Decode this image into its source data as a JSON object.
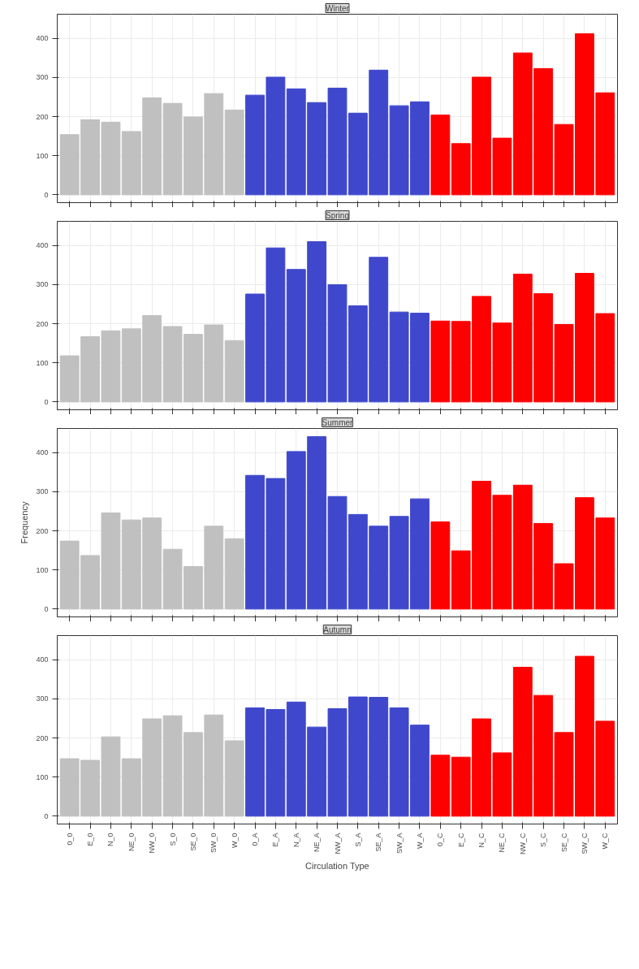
{
  "chart_data": [
    {
      "type": "bar",
      "title": "Winter",
      "categories": [
        null,
        null,
        null,
        null,
        null,
        null,
        null,
        null,
        null,
        null,
        null,
        null,
        null,
        null,
        null,
        null,
        null,
        null,
        null,
        null,
        null,
        null,
        null,
        null,
        null,
        null,
        null
      ],
      "values": [
        154,
        192,
        186,
        162,
        248,
        234,
        199,
        259,
        217,
        255,
        301,
        271,
        236,
        273,
        209,
        319,
        228,
        238,
        204,
        131,
        301,
        145,
        363,
        323,
        180,
        412,
        261
      ],
      "colors": [
        "#c0c0c0",
        "#c0c0c0",
        "#c0c0c0",
        "#c0c0c0",
        "#c0c0c0",
        "#c0c0c0",
        "#c0c0c0",
        "#c0c0c0",
        "#c0c0c0",
        "#3f48cc",
        "#3f48cc",
        "#3f48cc",
        "#3f48cc",
        "#3f48cc",
        "#3f48cc",
        "#3f48cc",
        "#3f48cc",
        "#3f48cc",
        "#ff0000",
        "#ff0000",
        "#ff0000",
        "#ff0000",
        "#ff0000",
        "#ff0000",
        "#ff0000",
        "#ff0000",
        "#ff0000"
      ],
      "ylim": [
        -20,
        462
      ],
      "yticks": [
        0,
        100,
        200,
        300,
        400
      ],
      "grid": true
    },
    {
      "type": "bar",
      "title": "Spring",
      "categories": [
        null,
        null,
        null,
        null,
        null,
        null,
        null,
        null,
        null,
        null,
        null,
        null,
        null,
        null,
        null,
        null,
        null,
        null,
        null,
        null,
        null,
        null,
        null,
        null,
        null,
        null,
        null
      ],
      "values": [
        118,
        167,
        182,
        187,
        221,
        193,
        173,
        197,
        157,
        276,
        394,
        339,
        410,
        300,
        246,
        370,
        230,
        227,
        207,
        206,
        270,
        202,
        327,
        277,
        198,
        329,
        226
      ],
      "colors": [
        "#c0c0c0",
        "#c0c0c0",
        "#c0c0c0",
        "#c0c0c0",
        "#c0c0c0",
        "#c0c0c0",
        "#c0c0c0",
        "#c0c0c0",
        "#c0c0c0",
        "#3f48cc",
        "#3f48cc",
        "#3f48cc",
        "#3f48cc",
        "#3f48cc",
        "#3f48cc",
        "#3f48cc",
        "#3f48cc",
        "#3f48cc",
        "#ff0000",
        "#ff0000",
        "#ff0000",
        "#ff0000",
        "#ff0000",
        "#ff0000",
        "#ff0000",
        "#ff0000",
        "#ff0000"
      ],
      "ylim": [
        -20,
        462
      ],
      "yticks": [
        0,
        100,
        200,
        300,
        400
      ],
      "grid": true
    },
    {
      "type": "bar",
      "title": "Summer",
      "ylabel": "Frequency",
      "categories": [
        null,
        null,
        null,
        null,
        null,
        null,
        null,
        null,
        null,
        null,
        null,
        null,
        null,
        null,
        null,
        null,
        null,
        null,
        null,
        null,
        null,
        null,
        null,
        null,
        null,
        null,
        null
      ],
      "values": [
        174,
        137,
        246,
        228,
        233,
        153,
        109,
        212,
        180,
        342,
        334,
        403,
        441,
        288,
        242,
        212,
        237,
        282,
        223,
        149,
        327,
        291,
        317,
        219,
        116,
        285,
        233
      ],
      "colors": [
        "#c0c0c0",
        "#c0c0c0",
        "#c0c0c0",
        "#c0c0c0",
        "#c0c0c0",
        "#c0c0c0",
        "#c0c0c0",
        "#c0c0c0",
        "#c0c0c0",
        "#3f48cc",
        "#3f48cc",
        "#3f48cc",
        "#3f48cc",
        "#3f48cc",
        "#3f48cc",
        "#3f48cc",
        "#3f48cc",
        "#3f48cc",
        "#ff0000",
        "#ff0000",
        "#ff0000",
        "#ff0000",
        "#ff0000",
        "#ff0000",
        "#ff0000",
        "#ff0000",
        "#ff0000"
      ],
      "ylim": [
        -20,
        462
      ],
      "yticks": [
        0,
        100,
        200,
        300,
        400
      ],
      "grid": true
    },
    {
      "type": "bar",
      "title": "Autumn",
      "xlabel": "Circulation Type",
      "categories": [
        "0_0",
        "E_0",
        "N_0",
        "NE_0",
        "NW_0",
        "S_0",
        "SE_0",
        "SW_0",
        "W_0",
        "0_A",
        "E_A",
        "N_A",
        "NE_A",
        "NW_A",
        "S_A",
        "SE_A",
        "SW_A",
        "W_A",
        "0_C",
        "E_C",
        "N_C",
        "NE_C",
        "NW_C",
        "S_C",
        "SE_C",
        "SW_C",
        "W_C"
      ],
      "values": [
        147,
        143,
        203,
        147,
        249,
        257,
        214,
        259,
        193,
        277,
        273,
        292,
        228,
        275,
        305,
        304,
        277,
        233,
        156,
        151,
        249,
        162,
        381,
        309,
        214,
        409,
        243
      ],
      "colors": [
        "#c0c0c0",
        "#c0c0c0",
        "#c0c0c0",
        "#c0c0c0",
        "#c0c0c0",
        "#c0c0c0",
        "#c0c0c0",
        "#c0c0c0",
        "#c0c0c0",
        "#3f48cc",
        "#3f48cc",
        "#3f48cc",
        "#3f48cc",
        "#3f48cc",
        "#3f48cc",
        "#3f48cc",
        "#3f48cc",
        "#3f48cc",
        "#ff0000",
        "#ff0000",
        "#ff0000",
        "#ff0000",
        "#ff0000",
        "#ff0000",
        "#ff0000",
        "#ff0000",
        "#ff0000"
      ],
      "ylim": [
        -20,
        462
      ],
      "yticks": [
        0,
        100,
        200,
        300,
        400
      ],
      "grid": true
    }
  ]
}
